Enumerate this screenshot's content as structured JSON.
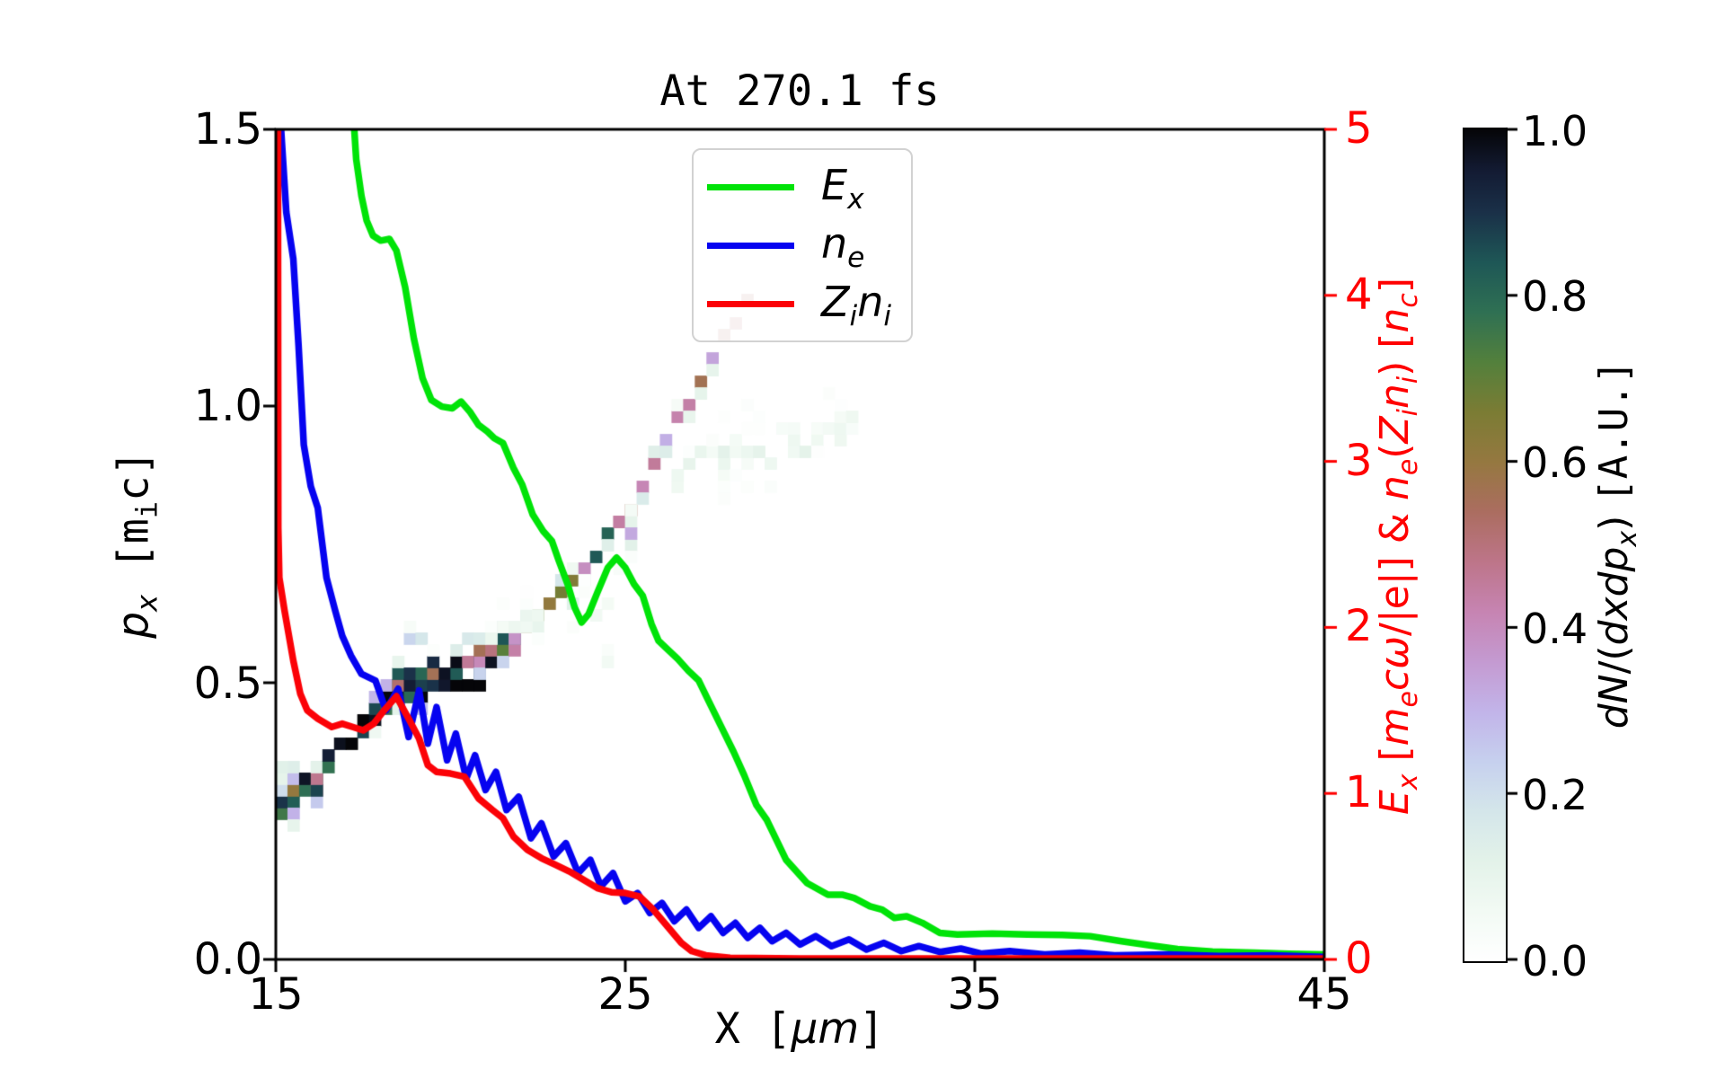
{
  "title": "At 270.1 fs",
  "axes": {
    "x": {
      "label_plain": "X [um]",
      "label_parts": [
        {
          "t": "X [",
          "mono": 1
        },
        {
          "t": "μm",
          "it": 1
        },
        {
          "t": "]",
          "mono": 1
        }
      ],
      "ticks": [
        "15",
        "25",
        "35",
        "45"
      ]
    },
    "y_left": {
      "label_plain": "p_x [m_i c]",
      "label_parts": [
        {
          "t": "p",
          "it": 1
        },
        {
          "t": "x",
          "it": 1,
          "sub": 1
        },
        {
          "t": " ",
          "mono": 1
        },
        {
          "t": "[m",
          "mono": 1
        },
        {
          "t": "i",
          "mono": 1,
          "sub": 1
        },
        {
          "t": "c]",
          "mono": 1
        }
      ],
      "ticks": [
        "0.0",
        "0.5",
        "1.0",
        "1.5"
      ]
    },
    "y_right": {
      "label_plain": "E_x [m_e c omega/|e|] & n_e(Z_i n_i) [n_c]",
      "label_parts": [
        {
          "t": "E",
          "it": 1
        },
        {
          "t": "x",
          "it": 1,
          "sub": 1
        },
        {
          "t": " ["
        },
        {
          "t": "m",
          "it": 1
        },
        {
          "t": "e",
          "it": 1,
          "sub": 1
        },
        {
          "t": "c",
          "it": 1
        },
        {
          "t": "ω",
          "it": 1
        },
        {
          "t": "/|e|] & "
        },
        {
          "t": "n",
          "it": 1
        },
        {
          "t": "e",
          "it": 1,
          "sub": 1
        },
        {
          "t": "("
        },
        {
          "t": "Z",
          "it": 1
        },
        {
          "t": "i",
          "it": 1,
          "sub": 1
        },
        {
          "t": "n",
          "it": 1
        },
        {
          "t": "i",
          "it": 1,
          "sub": 1
        },
        {
          "t": ") ["
        },
        {
          "t": "n",
          "it": 1
        },
        {
          "t": "c",
          "it": 1,
          "sub": 1
        },
        {
          "t": "]"
        }
      ],
      "ticks": [
        "0",
        "1",
        "2",
        "3",
        "4",
        "5"
      ],
      "color": "#ff0000"
    }
  },
  "colorbar": {
    "label_plain": "dN/(dxdp_x) [A.U.]",
    "label_parts": [
      {
        "t": "dN",
        "it": 1
      },
      {
        "t": "/("
      },
      {
        "t": "dxdp",
        "it": 1
      },
      {
        "t": "x",
        "it": 1,
        "sub": 1
      },
      {
        "t": ") "
      },
      {
        "t": "[A.U.]",
        "mono": 1
      }
    ],
    "ticks": [
      "0.0",
      "0.2",
      "0.4",
      "0.6",
      "0.8",
      "1.0"
    ],
    "stops": [
      [
        0,
        "#ffffff"
      ],
      [
        0.06,
        "#f2faf4"
      ],
      [
        0.12,
        "#e3f2e9"
      ],
      [
        0.18,
        "#d4e6ea"
      ],
      [
        0.24,
        "#c6d0ee"
      ],
      [
        0.3,
        "#c2b4e9"
      ],
      [
        0.36,
        "#c49ad1"
      ],
      [
        0.42,
        "#c684b2"
      ],
      [
        0.48,
        "#bd7589"
      ],
      [
        0.54,
        "#ab6d60"
      ],
      [
        0.6,
        "#957840"
      ],
      [
        0.66,
        "#7b7c34"
      ],
      [
        0.72,
        "#53803c"
      ],
      [
        0.78,
        "#2f7053"
      ],
      [
        0.84,
        "#1e5756"
      ],
      [
        0.9,
        "#1a3048"
      ],
      [
        0.95,
        "#131b33"
      ],
      [
        1,
        "#050508"
      ]
    ]
  },
  "legend": {
    "items": [
      {
        "label_plain": "E_x",
        "label_parts": [
          {
            "t": "E",
            "it": 1
          },
          {
            "t": "x",
            "it": 1,
            "sub": 1
          }
        ],
        "color": "#00e308"
      },
      {
        "label_plain": "n_e",
        "label_parts": [
          {
            "t": "n",
            "it": 1
          },
          {
            "t": "e",
            "it": 1,
            "sub": 1
          }
        ],
        "color": "#0603f0"
      },
      {
        "label_plain": "Z_i n_i",
        "label_parts": [
          {
            "t": "Z",
            "it": 1
          },
          {
            "t": "i",
            "it": 1,
            "sub": 1
          },
          {
            "t": "n",
            "it": 1
          },
          {
            "t": "i",
            "it": 1,
            "sub": 1
          }
        ],
        "color": "#fb0207"
      }
    ]
  },
  "chart_data": {
    "type": "heatmap+line",
    "title": "At 270.1 fs",
    "xlabel": "X [um]",
    "ylabel_left": "p_x [m_i c]",
    "ylabel_right": "E_x [m_e c w/|e|] & n_e(Z_i n_i) [n_c]",
    "xlim": [
      15,
      45
    ],
    "plim": [
      0,
      1.5
    ],
    "rlim": [
      0,
      5
    ],
    "xticks": [
      15,
      25,
      35,
      45
    ],
    "pticks": [
      0,
      0.5,
      1.0,
      1.5
    ],
    "rticks": [
      0,
      1,
      2,
      3,
      4,
      5
    ],
    "cticks": [
      0,
      0.2,
      0.4,
      0.6,
      0.8,
      1.0
    ],
    "grid": false,
    "legend_position": "upper center",
    "series": [
      {
        "name": "E_x",
        "axis": "right",
        "color": "#00e308",
        "width": 7.5,
        "points": [
          [
            17.22,
            5.08
          ],
          [
            17.3,
            4.82
          ],
          [
            17.45,
            4.6
          ],
          [
            17.6,
            4.45
          ],
          [
            17.78,
            4.36
          ],
          [
            18.0,
            4.33
          ],
          [
            18.25,
            4.34
          ],
          [
            18.45,
            4.27
          ],
          [
            18.7,
            4.05
          ],
          [
            18.95,
            3.74
          ],
          [
            19.2,
            3.5
          ],
          [
            19.45,
            3.37
          ],
          [
            19.75,
            3.33
          ],
          [
            20.05,
            3.32
          ],
          [
            20.3,
            3.36
          ],
          [
            20.55,
            3.3
          ],
          [
            20.8,
            3.22
          ],
          [
            21.05,
            3.18
          ],
          [
            21.25,
            3.14
          ],
          [
            21.5,
            3.11
          ],
          [
            21.8,
            2.96
          ],
          [
            22.05,
            2.86
          ],
          [
            22.35,
            2.68
          ],
          [
            22.65,
            2.58
          ],
          [
            22.9,
            2.52
          ],
          [
            23.1,
            2.4
          ],
          [
            23.35,
            2.26
          ],
          [
            23.55,
            2.12
          ],
          [
            23.75,
            2.03
          ],
          [
            23.95,
            2.08
          ],
          [
            24.2,
            2.21
          ],
          [
            24.5,
            2.36
          ],
          [
            24.75,
            2.42
          ],
          [
            25.0,
            2.36
          ],
          [
            25.25,
            2.26
          ],
          [
            25.5,
            2.19
          ],
          [
            25.75,
            2.02
          ],
          [
            25.95,
            1.92
          ],
          [
            26.2,
            1.87
          ],
          [
            26.5,
            1.81
          ],
          [
            26.8,
            1.74
          ],
          [
            27.1,
            1.68
          ],
          [
            27.4,
            1.55
          ],
          [
            27.75,
            1.4
          ],
          [
            28.1,
            1.25
          ],
          [
            28.4,
            1.11
          ],
          [
            28.75,
            0.93
          ],
          [
            29.05,
            0.84
          ],
          [
            29.6,
            0.6
          ],
          [
            30.2,
            0.46
          ],
          [
            30.8,
            0.39
          ],
          [
            31.2,
            0.39
          ],
          [
            31.55,
            0.37
          ],
          [
            32.0,
            0.32
          ],
          [
            32.35,
            0.3
          ],
          [
            32.7,
            0.25
          ],
          [
            33.05,
            0.26
          ],
          [
            33.5,
            0.22
          ],
          [
            34.0,
            0.16
          ],
          [
            34.5,
            0.15
          ],
          [
            35.5,
            0.155
          ],
          [
            36.5,
            0.15
          ],
          [
            37.5,
            0.147
          ],
          [
            38.3,
            0.14
          ],
          [
            39.2,
            0.11
          ],
          [
            40.0,
            0.085
          ],
          [
            40.8,
            0.062
          ],
          [
            41.8,
            0.048
          ],
          [
            43.0,
            0.04
          ],
          [
            44.0,
            0.034
          ],
          [
            45.0,
            0.03
          ]
        ]
      },
      {
        "name": "n_e",
        "axis": "right",
        "color": "#0603f0",
        "width": 7.5,
        "points": [
          [
            15.12,
            5.1
          ],
          [
            15.3,
            4.5
          ],
          [
            15.5,
            4.22
          ],
          [
            15.65,
            3.7
          ],
          [
            15.8,
            3.1
          ],
          [
            16.0,
            2.85
          ],
          [
            16.2,
            2.72
          ],
          [
            16.45,
            2.3
          ],
          [
            16.7,
            2.1
          ],
          [
            16.9,
            1.95
          ],
          [
            17.15,
            1.83
          ],
          [
            17.45,
            1.72
          ],
          [
            17.85,
            1.68
          ],
          [
            18.15,
            1.5
          ],
          [
            18.5,
            1.63
          ],
          [
            18.8,
            1.34
          ],
          [
            19.1,
            1.62
          ],
          [
            19.35,
            1.3
          ],
          [
            19.6,
            1.52
          ],
          [
            19.9,
            1.2
          ],
          [
            20.15,
            1.36
          ],
          [
            20.45,
            1.09
          ],
          [
            20.7,
            1.23
          ],
          [
            21.0,
            1.02
          ],
          [
            21.3,
            1.13
          ],
          [
            21.6,
            0.9
          ],
          [
            21.95,
            0.98
          ],
          [
            22.3,
            0.73
          ],
          [
            22.6,
            0.82
          ],
          [
            22.95,
            0.62
          ],
          [
            23.3,
            0.7
          ],
          [
            23.65,
            0.52
          ],
          [
            24.0,
            0.6
          ],
          [
            24.3,
            0.44
          ],
          [
            24.65,
            0.52
          ],
          [
            25.0,
            0.35
          ],
          [
            25.35,
            0.4
          ],
          [
            25.7,
            0.28
          ],
          [
            26.05,
            0.34
          ],
          [
            26.4,
            0.23
          ],
          [
            26.75,
            0.3
          ],
          [
            27.1,
            0.19
          ],
          [
            27.45,
            0.26
          ],
          [
            27.8,
            0.16
          ],
          [
            28.15,
            0.22
          ],
          [
            28.5,
            0.13
          ],
          [
            28.85,
            0.19
          ],
          [
            29.2,
            0.11
          ],
          [
            29.6,
            0.16
          ],
          [
            30.0,
            0.09
          ],
          [
            30.45,
            0.14
          ],
          [
            30.9,
            0.08
          ],
          [
            31.4,
            0.12
          ],
          [
            31.9,
            0.06
          ],
          [
            32.4,
            0.1
          ],
          [
            32.9,
            0.05
          ],
          [
            33.4,
            0.08
          ],
          [
            34.0,
            0.045
          ],
          [
            34.6,
            0.065
          ],
          [
            35.2,
            0.035
          ],
          [
            36.0,
            0.05
          ],
          [
            37.0,
            0.03
          ],
          [
            38.0,
            0.04
          ],
          [
            39.0,
            0.025
          ],
          [
            40.5,
            0.03
          ],
          [
            42.0,
            0.02
          ],
          [
            43.5,
            0.025
          ],
          [
            45.0,
            0.015
          ]
        ]
      },
      {
        "name": "Z_i n_i",
        "axis": "right",
        "color": "#fb0207",
        "width": 7.5,
        "points": [
          [
            15.06,
            5.1
          ],
          [
            15.07,
            2.6
          ],
          [
            15.1,
            2.3
          ],
          [
            15.25,
            2.1
          ],
          [
            15.5,
            1.8
          ],
          [
            15.7,
            1.6
          ],
          [
            15.9,
            1.5
          ],
          [
            16.2,
            1.45
          ],
          [
            16.6,
            1.4
          ],
          [
            16.9,
            1.42
          ],
          [
            17.2,
            1.4
          ],
          [
            17.5,
            1.38
          ],
          [
            17.8,
            1.42
          ],
          [
            18.1,
            1.5
          ],
          [
            18.45,
            1.585
          ],
          [
            18.8,
            1.45
          ],
          [
            19.1,
            1.33
          ],
          [
            19.35,
            1.17
          ],
          [
            19.6,
            1.13
          ],
          [
            20.0,
            1.12
          ],
          [
            20.4,
            1.1
          ],
          [
            20.8,
            0.97
          ],
          [
            21.2,
            0.9
          ],
          [
            21.5,
            0.85
          ],
          [
            21.8,
            0.74
          ],
          [
            22.2,
            0.66
          ],
          [
            22.6,
            0.61
          ],
          [
            23.0,
            0.57
          ],
          [
            23.4,
            0.53
          ],
          [
            23.8,
            0.48
          ],
          [
            24.2,
            0.43
          ],
          [
            24.6,
            0.405
          ],
          [
            25.0,
            0.4
          ],
          [
            25.4,
            0.38
          ],
          [
            25.8,
            0.3
          ],
          [
            26.2,
            0.2
          ],
          [
            26.6,
            0.1
          ],
          [
            26.9,
            0.05
          ],
          [
            27.3,
            0.025
          ],
          [
            28.0,
            0.01
          ],
          [
            30.0,
            0.006
          ],
          [
            45.0,
            0.005
          ]
        ]
      }
    ],
    "heatmap": {
      "description": "dN/(dxdp_x) ion phase space, x vs p_x, normalized 0-1",
      "cell": [
        0.333,
        0.0211
      ],
      "segments": [
        {
          "x0": 15.0,
          "p0": 0.245,
          "x1": 16.3,
          "p1": 0.305,
          "core": 2,
          "halo": 2,
          "int": 0.95,
          "den": 0.93
        },
        {
          "x0": 16.3,
          "p0": 0.305,
          "x1": 18.35,
          "p1": 0.46,
          "core": 2,
          "halo": 1,
          "int": 0.95,
          "den": 0.9
        },
        {
          "x0": 15.0,
          "p0": 0.33,
          "x1": 16.4,
          "p1": 0.41,
          "core": 1,
          "halo": 1,
          "int": 0.13,
          "den": 0.45
        },
        {
          "x0": 18.35,
          "p0": 0.49,
          "x1": 20.95,
          "p1": 0.51,
          "core": 3,
          "halo": 1,
          "int": 0.97,
          "den": 0.96
        },
        {
          "x0": 18.4,
          "p0": 0.565,
          "x1": 21.0,
          "p1": 0.575,
          "core": 1,
          "halo": 1,
          "int": 0.15,
          "den": 0.5
        },
        {
          "x0": 20.95,
          "p0": 0.525,
          "x1": 21.7,
          "p1": 0.55,
          "core": 2,
          "halo": 1,
          "int": 0.85,
          "den": 0.92
        },
        {
          "x0": 21.7,
          "p0": 0.56,
          "x1": 24.75,
          "p1": 0.775,
          "core": 1,
          "halo": 1,
          "int": 0.78,
          "den": 0.95
        },
        {
          "x0": 24.75,
          "p0": 0.775,
          "x1": 28.45,
          "p1": 1.185,
          "core": 1,
          "halo": 1,
          "int": 0.5,
          "den": 0.95
        },
        {
          "x0": 24.35,
          "p0": 0.58,
          "x1": 25.3,
          "p1": 0.74,
          "core": 2,
          "halo": 2,
          "int": 0.2,
          "den": 0.5
        },
        {
          "x0": 20.7,
          "p0": 0.57,
          "x1": 24.1,
          "p1": 0.615,
          "core": 2,
          "halo": 2,
          "int": 0.09,
          "den": 0.5
        },
        {
          "x0": 26.0,
          "p0": 0.86,
          "x1": 31.6,
          "p1": 0.96,
          "core": 3,
          "halo": 3,
          "int": 0.07,
          "den": 0.5
        }
      ]
    }
  }
}
